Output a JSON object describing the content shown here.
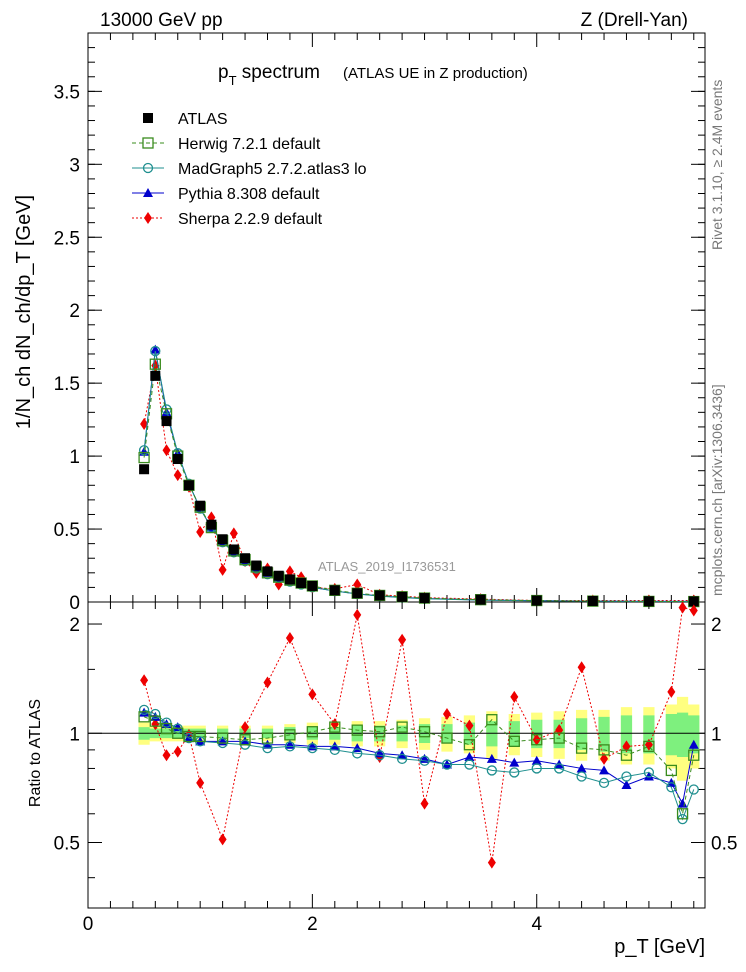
{
  "header": {
    "energy_label": "13000 GeV pp",
    "process_label": "Z (Drell-Yan)",
    "title_main": "p",
    "title_sub": "T",
    "title_rest": " spectrum",
    "title_note": "(ATLAS UE in Z production)",
    "side_label_top": "Rivet 3.1.10, ≥ 2.4M events",
    "side_label_bottom": "mcplots.cern.ch [arXiv:1306.3436]",
    "watermark": "ATLAS_2019_I1736531"
  },
  "axes": {
    "top_ylabel": "1/N_ch dN_ch/dp_T [GeV]",
    "ratio_ylabel": "Ratio to ATLAS",
    "xlabel": "p_T [GeV]"
  },
  "legend": {
    "atlas": "ATLAS",
    "herwig": "Herwig 7.2.1 default",
    "madgraph": "MadGraph5 2.7.2.atlas3 lo",
    "pythia": "Pythia 8.308 default",
    "sherpa": "Sherpa 2.2.9 default"
  },
  "colors": {
    "atlas": "#000000",
    "herwig": "#3a8c1e",
    "madgraph": "#1f8f8f",
    "pythia": "#0000cc",
    "sherpa": "#ee0000",
    "band_inner": "#7ef07e",
    "band_outer": "#ffff80"
  },
  "chart_data": [
    {
      "type": "scatter",
      "panel": "main",
      "xlim": [
        0,
        5.5
      ],
      "ylim": [
        0,
        3.9
      ],
      "y_ticks": [
        "0",
        "0.5",
        "1",
        "1.5",
        "2",
        "2.5",
        "3",
        "3.5"
      ],
      "x": [
        0.5,
        0.6,
        0.7,
        0.8,
        0.9,
        1.0,
        1.1,
        1.2,
        1.3,
        1.4,
        1.5,
        1.6,
        1.7,
        1.8,
        1.9,
        2.0,
        2.2,
        2.4,
        2.6,
        2.8,
        3.0,
        3.5,
        4.0,
        4.5,
        5.0,
        5.4
      ],
      "series": [
        {
          "name": "ATLAS",
          "values": [
            0.91,
            1.55,
            1.24,
            0.98,
            0.8,
            0.66,
            0.53,
            0.43,
            0.36,
            0.3,
            0.25,
            0.21,
            0.18,
            0.155,
            0.13,
            0.11,
            0.08,
            0.06,
            0.045,
            0.035,
            0.027,
            0.016,
            0.01,
            0.007,
            0.005,
            0.004
          ]
        },
        {
          "name": "Herwig 7.2.1 default",
          "values": [
            0.99,
            1.63,
            1.29,
            1.0,
            0.8,
            0.65,
            0.51,
            0.42,
            0.35,
            0.29,
            0.24,
            0.2,
            0.17,
            0.15,
            0.13,
            0.11,
            0.08,
            0.06,
            0.045,
            0.036,
            0.027,
            0.016,
            0.01,
            0.006,
            0.004,
            0.003
          ]
        },
        {
          "name": "MadGraph5 2.7.2.atlas3 lo",
          "values": [
            1.04,
            1.72,
            1.32,
            1.02,
            0.81,
            0.64,
            0.51,
            0.41,
            0.34,
            0.28,
            0.23,
            0.19,
            0.165,
            0.14,
            0.12,
            0.1,
            0.075,
            0.055,
            0.04,
            0.03,
            0.022,
            0.013,
            0.008,
            0.006,
            0.004,
            0.003
          ]
        },
        {
          "name": "Pythia 8.308 default",
          "values": [
            1.03,
            1.73,
            1.3,
            1.02,
            0.81,
            0.64,
            0.51,
            0.41,
            0.34,
            0.28,
            0.23,
            0.2,
            0.165,
            0.14,
            0.12,
            0.1,
            0.075,
            0.056,
            0.042,
            0.032,
            0.024,
            0.014,
            0.009,
            0.006,
            0.004,
            0.004
          ]
        },
        {
          "name": "Sherpa 2.2.9 default",
          "values": [
            1.22,
            1.62,
            1.04,
            0.87,
            0.79,
            0.48,
            0.58,
            0.22,
            0.47,
            0.28,
            0.2,
            0.23,
            0.12,
            0.21,
            0.17,
            0.1,
            0.09,
            0.12,
            0.05,
            0.04,
            0.03,
            0.02,
            0.01,
            0.01,
            0.01,
            0.01
          ]
        }
      ]
    },
    {
      "type": "scatter",
      "panel": "ratio",
      "xlim": [
        0,
        5.5
      ],
      "ylim": [
        0.33,
        2.3
      ],
      "y_ticks": [
        "0.5",
        "1",
        "2"
      ],
      "x_ticks": [
        "0",
        "2",
        "4"
      ],
      "x": [
        0.5,
        0.6,
        0.7,
        0.8,
        0.9,
        1.0,
        1.2,
        1.4,
        1.6,
        1.8,
        2.0,
        2.2,
        2.4,
        2.6,
        2.8,
        3.0,
        3.2,
        3.4,
        3.6,
        3.8,
        4.0,
        4.2,
        4.4,
        4.6,
        4.8,
        5.0,
        5.2,
        5.3,
        5.4
      ],
      "series": [
        {
          "name": "Herwig 7.2.1 default",
          "values": [
            1.11,
            1.08,
            1.03,
            1.0,
            0.98,
            0.98,
            0.97,
            0.96,
            0.97,
            0.99,
            1.01,
            1.04,
            1.02,
            1.01,
            1.04,
            1.01,
            0.97,
            0.93,
            1.09,
            0.95,
            0.96,
            0.97,
            0.91,
            0.9,
            0.87,
            0.92,
            0.79,
            0.6,
            0.87
          ]
        },
        {
          "name": "MadGraph5 2.7.2.atlas3 lo",
          "values": [
            1.16,
            1.13,
            1.07,
            1.03,
            0.97,
            0.95,
            0.94,
            0.93,
            0.91,
            0.92,
            0.91,
            0.9,
            0.88,
            0.87,
            0.85,
            0.84,
            0.82,
            0.82,
            0.79,
            0.78,
            0.8,
            0.8,
            0.76,
            0.73,
            0.76,
            0.78,
            0.71,
            0.58,
            0.7
          ]
        },
        {
          "name": "Pythia 8.308 default",
          "values": [
            1.14,
            1.11,
            1.06,
            1.04,
            0.97,
            0.95,
            0.95,
            0.95,
            0.93,
            0.93,
            0.92,
            0.92,
            0.91,
            0.88,
            0.87,
            0.85,
            0.82,
            0.86,
            0.85,
            0.83,
            0.84,
            0.82,
            0.8,
            0.79,
            0.72,
            0.76,
            0.73,
            0.64,
            0.93
          ]
        },
        {
          "name": "Sherpa 2.2.9 default",
          "values": [
            1.4,
            1.06,
            0.87,
            0.89,
            0.99,
            0.73,
            0.51,
            1.04,
            1.38,
            1.83,
            1.28,
            1.06,
            2.12,
            0.86,
            1.81,
            0.64,
            1.13,
            1.05,
            0.44,
            1.26,
            0.96,
            1.02,
            1.52,
            0.85,
            0.92,
            0.93,
            1.3,
            2.22,
            2.18
          ]
        }
      ],
      "band_inner_halfwidth": [
        0.04,
        0.03,
        0.03,
        0.03,
        0.03,
        0.03,
        0.03,
        0.03,
        0.03,
        0.04,
        0.04,
        0.04,
        0.05,
        0.05,
        0.05,
        0.06,
        0.06,
        0.07,
        0.08,
        0.08,
        0.09,
        0.09,
        0.1,
        0.11,
        0.12,
        0.12,
        0.13,
        0.14,
        0.12
      ],
      "band_outer_halfwidth": [
        0.07,
        0.05,
        0.05,
        0.05,
        0.05,
        0.05,
        0.05,
        0.05,
        0.05,
        0.06,
        0.07,
        0.07,
        0.08,
        0.08,
        0.09,
        0.1,
        0.11,
        0.12,
        0.15,
        0.13,
        0.14,
        0.15,
        0.16,
        0.16,
        0.18,
        0.18,
        0.2,
        0.26,
        0.2
      ]
    }
  ]
}
